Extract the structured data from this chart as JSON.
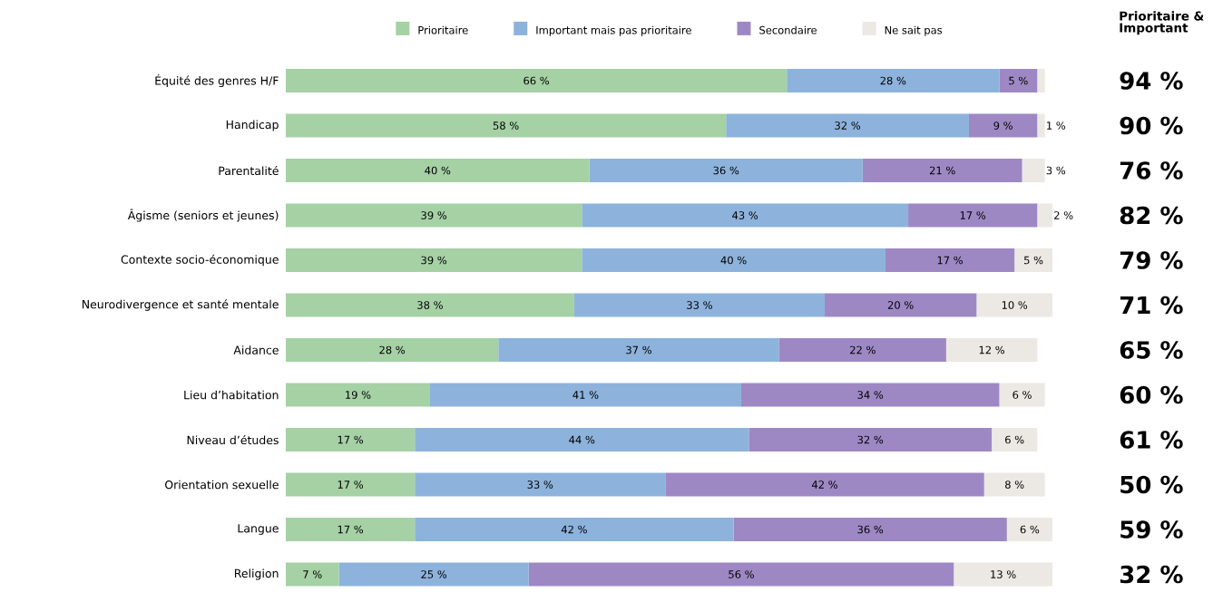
{
  "chart_data": {
    "type": "bar",
    "orientation": "horizontal",
    "stacked": true,
    "legend": "top",
    "tick_labels": "y",
    "xlim": [
      0,
      101
    ],
    "categories": [
      "Équité des genres H/F",
      "Handicap",
      "Parentalité",
      "Âgisme (seniors et jeunes)",
      "Contexte socio-économique",
      "Neurodivergence et santé mentale",
      "Aidance",
      "Lieu d’habitation",
      "Niveau d’études",
      "Orientation sexuelle",
      "Langue",
      "Religion"
    ],
    "series": [
      {
        "name": "Prioritaire",
        "color": "#a5d1a5",
        "values": [
          66,
          58,
          40,
          39,
          39,
          38,
          28,
          19,
          17,
          17,
          17,
          7
        ],
        "value_labels": [
          "66 %",
          "58 %",
          "40 %",
          "39 %",
          "39 %",
          "38 %",
          "28 %",
          "19 %",
          "17 %",
          "17 %",
          "17 %",
          "7 %"
        ]
      },
      {
        "name": "Important mais pas prioritaire",
        "color": "#8db3dc",
        "values": [
          28,
          32,
          36,
          43,
          40,
          33,
          37,
          41,
          44,
          33,
          42,
          25
        ],
        "value_labels": [
          "28 %",
          "32 %",
          "36 %",
          "43 %",
          "40 %",
          "33 %",
          "37 %",
          "41 %",
          "44 %",
          "33 %",
          "42 %",
          "25 %"
        ]
      },
      {
        "name": "Secondaire",
        "color": "#9e88c4",
        "values": [
          5,
          9,
          21,
          17,
          17,
          20,
          22,
          34,
          32,
          42,
          36,
          56
        ],
        "value_labels": [
          "5 %",
          "9 %",
          "21 %",
          "17 %",
          "17 %",
          "20 %",
          "22 %",
          "34 %",
          "32 %",
          "42 %",
          "36 %",
          "56 %"
        ]
      },
      {
        "name": "Ne sait pas",
        "color": "#ece8e3",
        "values": [
          1,
          1,
          3,
          2,
          5,
          10,
          12,
          6,
          6,
          8,
          6,
          13
        ],
        "value_labels": [
          null,
          "1 %",
          "3 %",
          "2 %",
          "5 %",
          "10 %",
          "12 %",
          "6 %",
          "6 %",
          "8 %",
          "6 %",
          "13 %"
        ]
      }
    ],
    "annotations": [
      "Prioritaire & Important",
      "94 %",
      "90 %",
      "76 %",
      "82 %",
      "79 %",
      "71 %",
      "65 %",
      "60 %",
      "61 %",
      "50 %",
      "59 %",
      "32 %"
    ]
  }
}
